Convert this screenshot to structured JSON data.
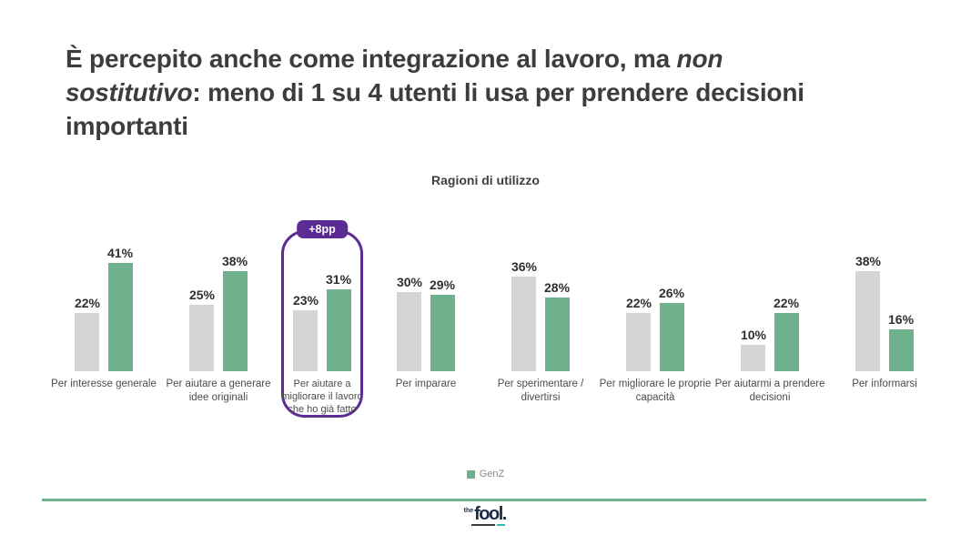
{
  "slide_title": {
    "part1": "È percepito anche come integrazione al lavoro, ma ",
    "part2_italic": "non sostitutivo",
    "part3": ": meno di 1 su 4 utenti li usa per prendere decisioni importanti"
  },
  "chart_data": {
    "type": "bar",
    "title": "Ragioni di utilizzo",
    "categories": [
      "Per interesse generale",
      "Per aiutare a generare idee originali",
      "Per aiutare a migliorare il lavoro che ho già fatto",
      "Per imparare",
      "Per sperimentare / divertirsi",
      "Per migliorare le proprie capacità",
      "Per aiutarmi a prendere decisioni",
      "Per informarsi"
    ],
    "series": [
      {
        "name": "",
        "show_in_legend": false,
        "color": "#D5D5D5",
        "values": [
          22,
          25,
          23,
          30,
          36,
          22,
          10,
          38
        ]
      },
      {
        "name": "GenZ",
        "show_in_legend": true,
        "color": "#6EB18C",
        "values": [
          41,
          38,
          31,
          29,
          28,
          26,
          22,
          16
        ]
      }
    ],
    "value_suffix": "%",
    "ylim": [
      0,
      60
    ],
    "grid": false,
    "legend_position": "bottom-center",
    "highlight": {
      "category_index": 2,
      "badge_label": "+8pp",
      "color": "#5B2C93"
    }
  },
  "footer": {
    "logo_prefix": "the",
    "logo_name": "fool",
    "logo_dot": "."
  },
  "colors": {
    "bar_gray": "#D5D5D5",
    "bar_green": "#6EB18C",
    "highlight_purple": "#5B2C93",
    "separator_green": "#6CB28C",
    "title_text": "#3D3D3D"
  }
}
